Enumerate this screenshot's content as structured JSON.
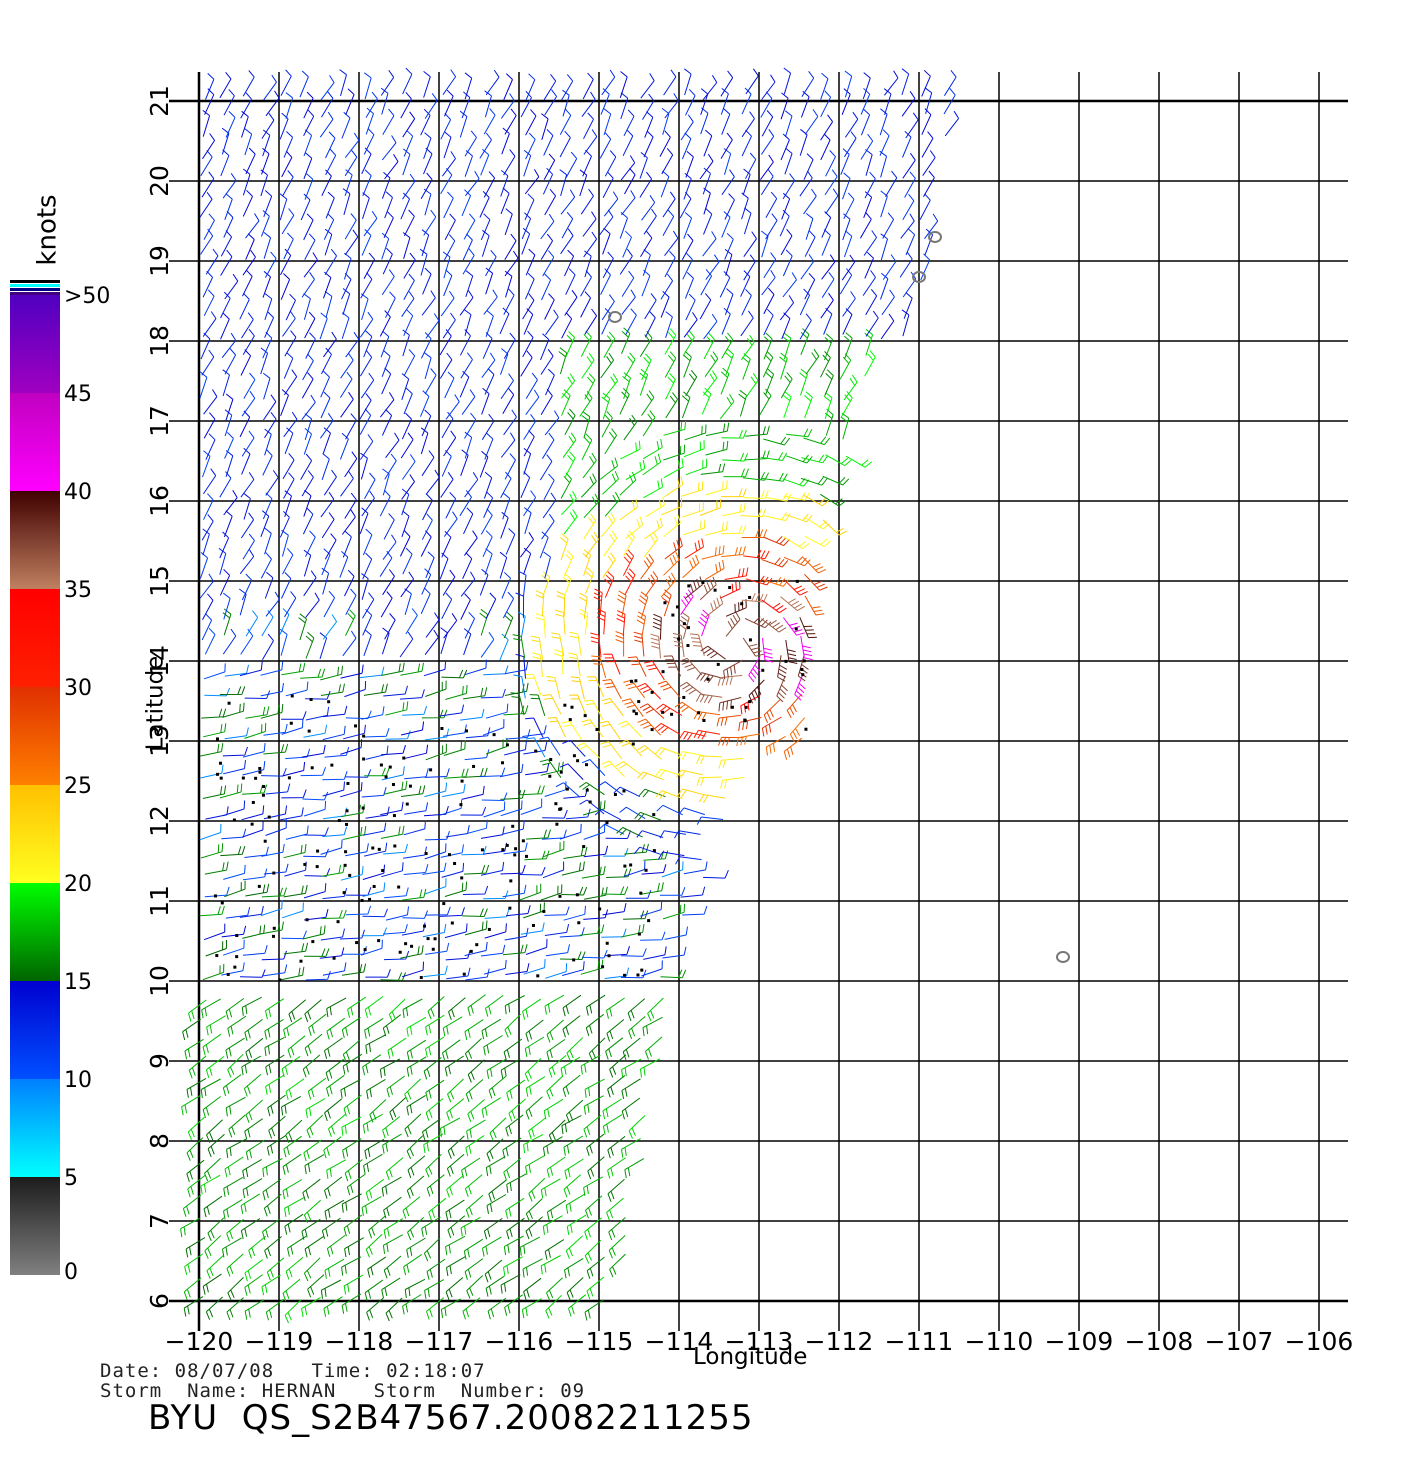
{
  "chart_data": {
    "type": "scatter",
    "subtype": "wind-barb-map",
    "xlabel": "Longitude",
    "ylabel": "Latitude",
    "xlim": [
      -120,
      -105.5
    ],
    "ylim": [
      6,
      21
    ],
    "x_ticks": [
      -120,
      -119,
      -118,
      -117,
      -116,
      -115,
      -114,
      -113,
      -112,
      -111,
      -110,
      -109,
      -108,
      -107,
      -106
    ],
    "x_tick_labels": [
      "−120",
      "−119",
      "−118",
      "−117",
      "−116",
      "−115",
      "−114",
      "−113",
      "−112",
      "−111",
      "−110",
      "−109",
      "−108",
      "−107",
      "−106"
    ],
    "y_ticks": [
      6,
      7,
      8,
      9,
      10,
      11,
      12,
      13,
      14,
      15,
      16,
      17,
      18,
      19,
      20,
      21
    ],
    "y_tick_labels": [
      "6",
      "7",
      "8",
      "9",
      "10",
      "11",
      "12",
      "13",
      "14",
      "15",
      "16",
      "17",
      "18",
      "19",
      "20",
      "21"
    ],
    "grid": true,
    "colorbar": {
      "unit": "knots",
      "labels": [
        "0",
        "5",
        "10",
        "15",
        "20",
        "25",
        "30",
        "35",
        "40",
        "45",
        ">50"
      ],
      "bands": [
        {
          "min": 0,
          "max": 5,
          "from": "#808080",
          "to": "#1c1c1c"
        },
        {
          "min": 5,
          "max": 10,
          "from": "#00ffff",
          "to": "#0080ff"
        },
        {
          "min": 10,
          "max": 15,
          "from": "#0050ff",
          "to": "#0000d0"
        },
        {
          "min": 15,
          "max": 20,
          "from": "#006400",
          "to": "#00ff00"
        },
        {
          "min": 20,
          "max": 25,
          "from": "#ffff20",
          "to": "#ffc000"
        },
        {
          "min": 25,
          "max": 30,
          "from": "#ff8000",
          "to": "#e03000"
        },
        {
          "min": 30,
          "max": 35,
          "from": "#ff2000",
          "to": "#ff0000"
        },
        {
          "min": 35,
          "max": 40,
          "from": "#c08060",
          "to": "#400000"
        },
        {
          "min": 40,
          "max": 45,
          "from": "#ff00ff",
          "to": "#c000c0"
        },
        {
          "min": 45,
          "max": 50,
          "from": "#a000c0",
          "to": "#5000c0"
        }
      ]
    },
    "swath": {
      "lon_min": -120,
      "lat_max": 21.2,
      "east_edge_at_top": -110.6,
      "east_edge_slope_deg_per_deg": 0.33,
      "lat_bottom_east_cut": [
        6,
        -114.6
      ]
    },
    "storm_center": [
      -113.3,
      14.2
    ],
    "land_contours": [
      [
        -114.8,
        18.3
      ],
      [
        -110.8,
        19.3
      ],
      [
        -111.0,
        18.8
      ],
      [
        -109.2,
        10.3
      ]
    ],
    "wind_regions": [
      {
        "name": "north-blue",
        "lat_range": [
          15,
          21
        ],
        "lon_range": [
          -120,
          -114
        ],
        "speed_kt": 13
      },
      {
        "name": "green-band",
        "lat_range": [
          15,
          18
        ],
        "lon_range": [
          -115,
          -112
        ],
        "speed_kt": 18
      },
      {
        "name": "storm-core",
        "lat_range": [
          13,
          15.2
        ],
        "lon_range": [
          -114.3,
          -112.3
        ],
        "speed_kt": 32
      },
      {
        "name": "middle-mixed",
        "lat_range": [
          10,
          14
        ],
        "lon_range": [
          -120,
          -114
        ],
        "speed_kt": 12
      },
      {
        "name": "south-green",
        "lat_range": [
          6,
          10
        ],
        "lon_range": [
          -120,
          -114
        ],
        "speed_kt": 17
      }
    ]
  },
  "labels": {
    "unit": "knots",
    "xlabel": "Longitude",
    "ylabel": "Latitude"
  },
  "info": {
    "date_time": "Date: 08/07/08   Time: 02:18:07",
    "storm": "Storm  Name: HERNAN   Storm  Number: 09",
    "title": "BYU  QS_S2B47567.20082211255"
  }
}
